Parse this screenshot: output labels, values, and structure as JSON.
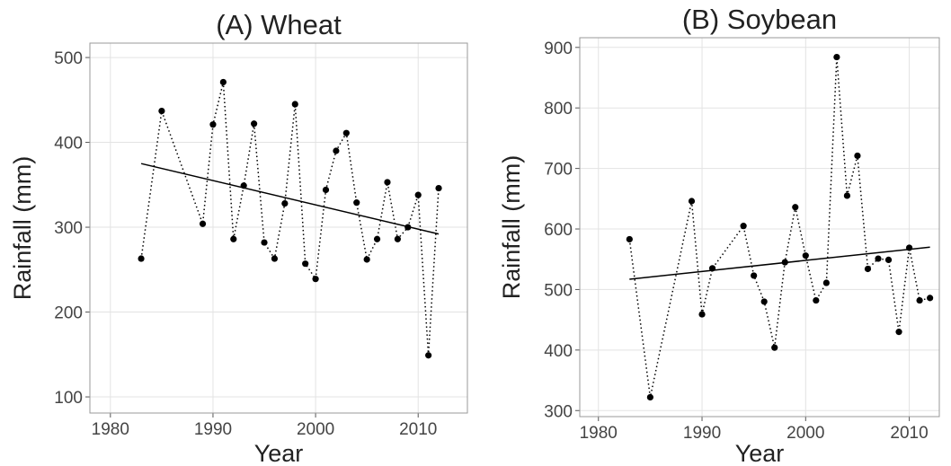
{
  "chart_data": [
    {
      "type": "line",
      "title": "(A) Wheat",
      "xlabel": "Year",
      "ylabel": "Rainfall (mm)",
      "x": [
        1983,
        1985,
        1989,
        1990,
        1991,
        1992,
        1993,
        1994,
        1995,
        1996,
        1997,
        1998,
        1999,
        2000,
        2001,
        2002,
        2003,
        2004,
        2005,
        2006,
        2007,
        2008,
        2009,
        2010,
        2011,
        2012
      ],
      "values": [
        263,
        437,
        304,
        421,
        471,
        286,
        349,
        422,
        282,
        263,
        328,
        445,
        257,
        239,
        344,
        390,
        411,
        329,
        262,
        286,
        353,
        286,
        300,
        338,
        149,
        346
      ],
      "trend": {
        "x": [
          1983,
          2012
        ],
        "values": [
          375,
          292
        ]
      },
      "color": "#000000",
      "grid": true,
      "xlim": [
        1978,
        2014.8
      ],
      "xticks": [
        1980,
        1990,
        2000,
        2010
      ],
      "ylim": [
        81,
        517
      ],
      "yticks": [
        100,
        200,
        300,
        400,
        500
      ]
    },
    {
      "type": "line",
      "title": "(B) Soybean",
      "xlabel": "Year",
      "ylabel": "Rainfall (mm)",
      "x": [
        1983,
        1985,
        1989,
        1990,
        1991,
        1994,
        1995,
        1996,
        1997,
        1998,
        1999,
        2000,
        2001,
        2002,
        2003,
        2004,
        2005,
        2006,
        2007,
        2008,
        2009,
        2010,
        2011,
        2012
      ],
      "values": [
        583,
        322,
        646,
        459,
        535,
        605,
        523,
        480,
        404,
        545,
        636,
        556,
        482,
        511,
        884,
        655,
        721,
        534,
        551,
        549,
        430,
        569,
        482,
        486
      ],
      "trend": {
        "x": [
          1983,
          2012
        ],
        "values": [
          517,
          570
        ]
      },
      "color": "#000000",
      "grid": true,
      "xlim": [
        1978.2,
        2012.9
      ],
      "xticks": [
        1980,
        1990,
        2000,
        2010
      ],
      "ylim": [
        290,
        916
      ],
      "yticks": [
        300,
        400,
        500,
        600,
        700,
        800,
        900
      ]
    }
  ]
}
